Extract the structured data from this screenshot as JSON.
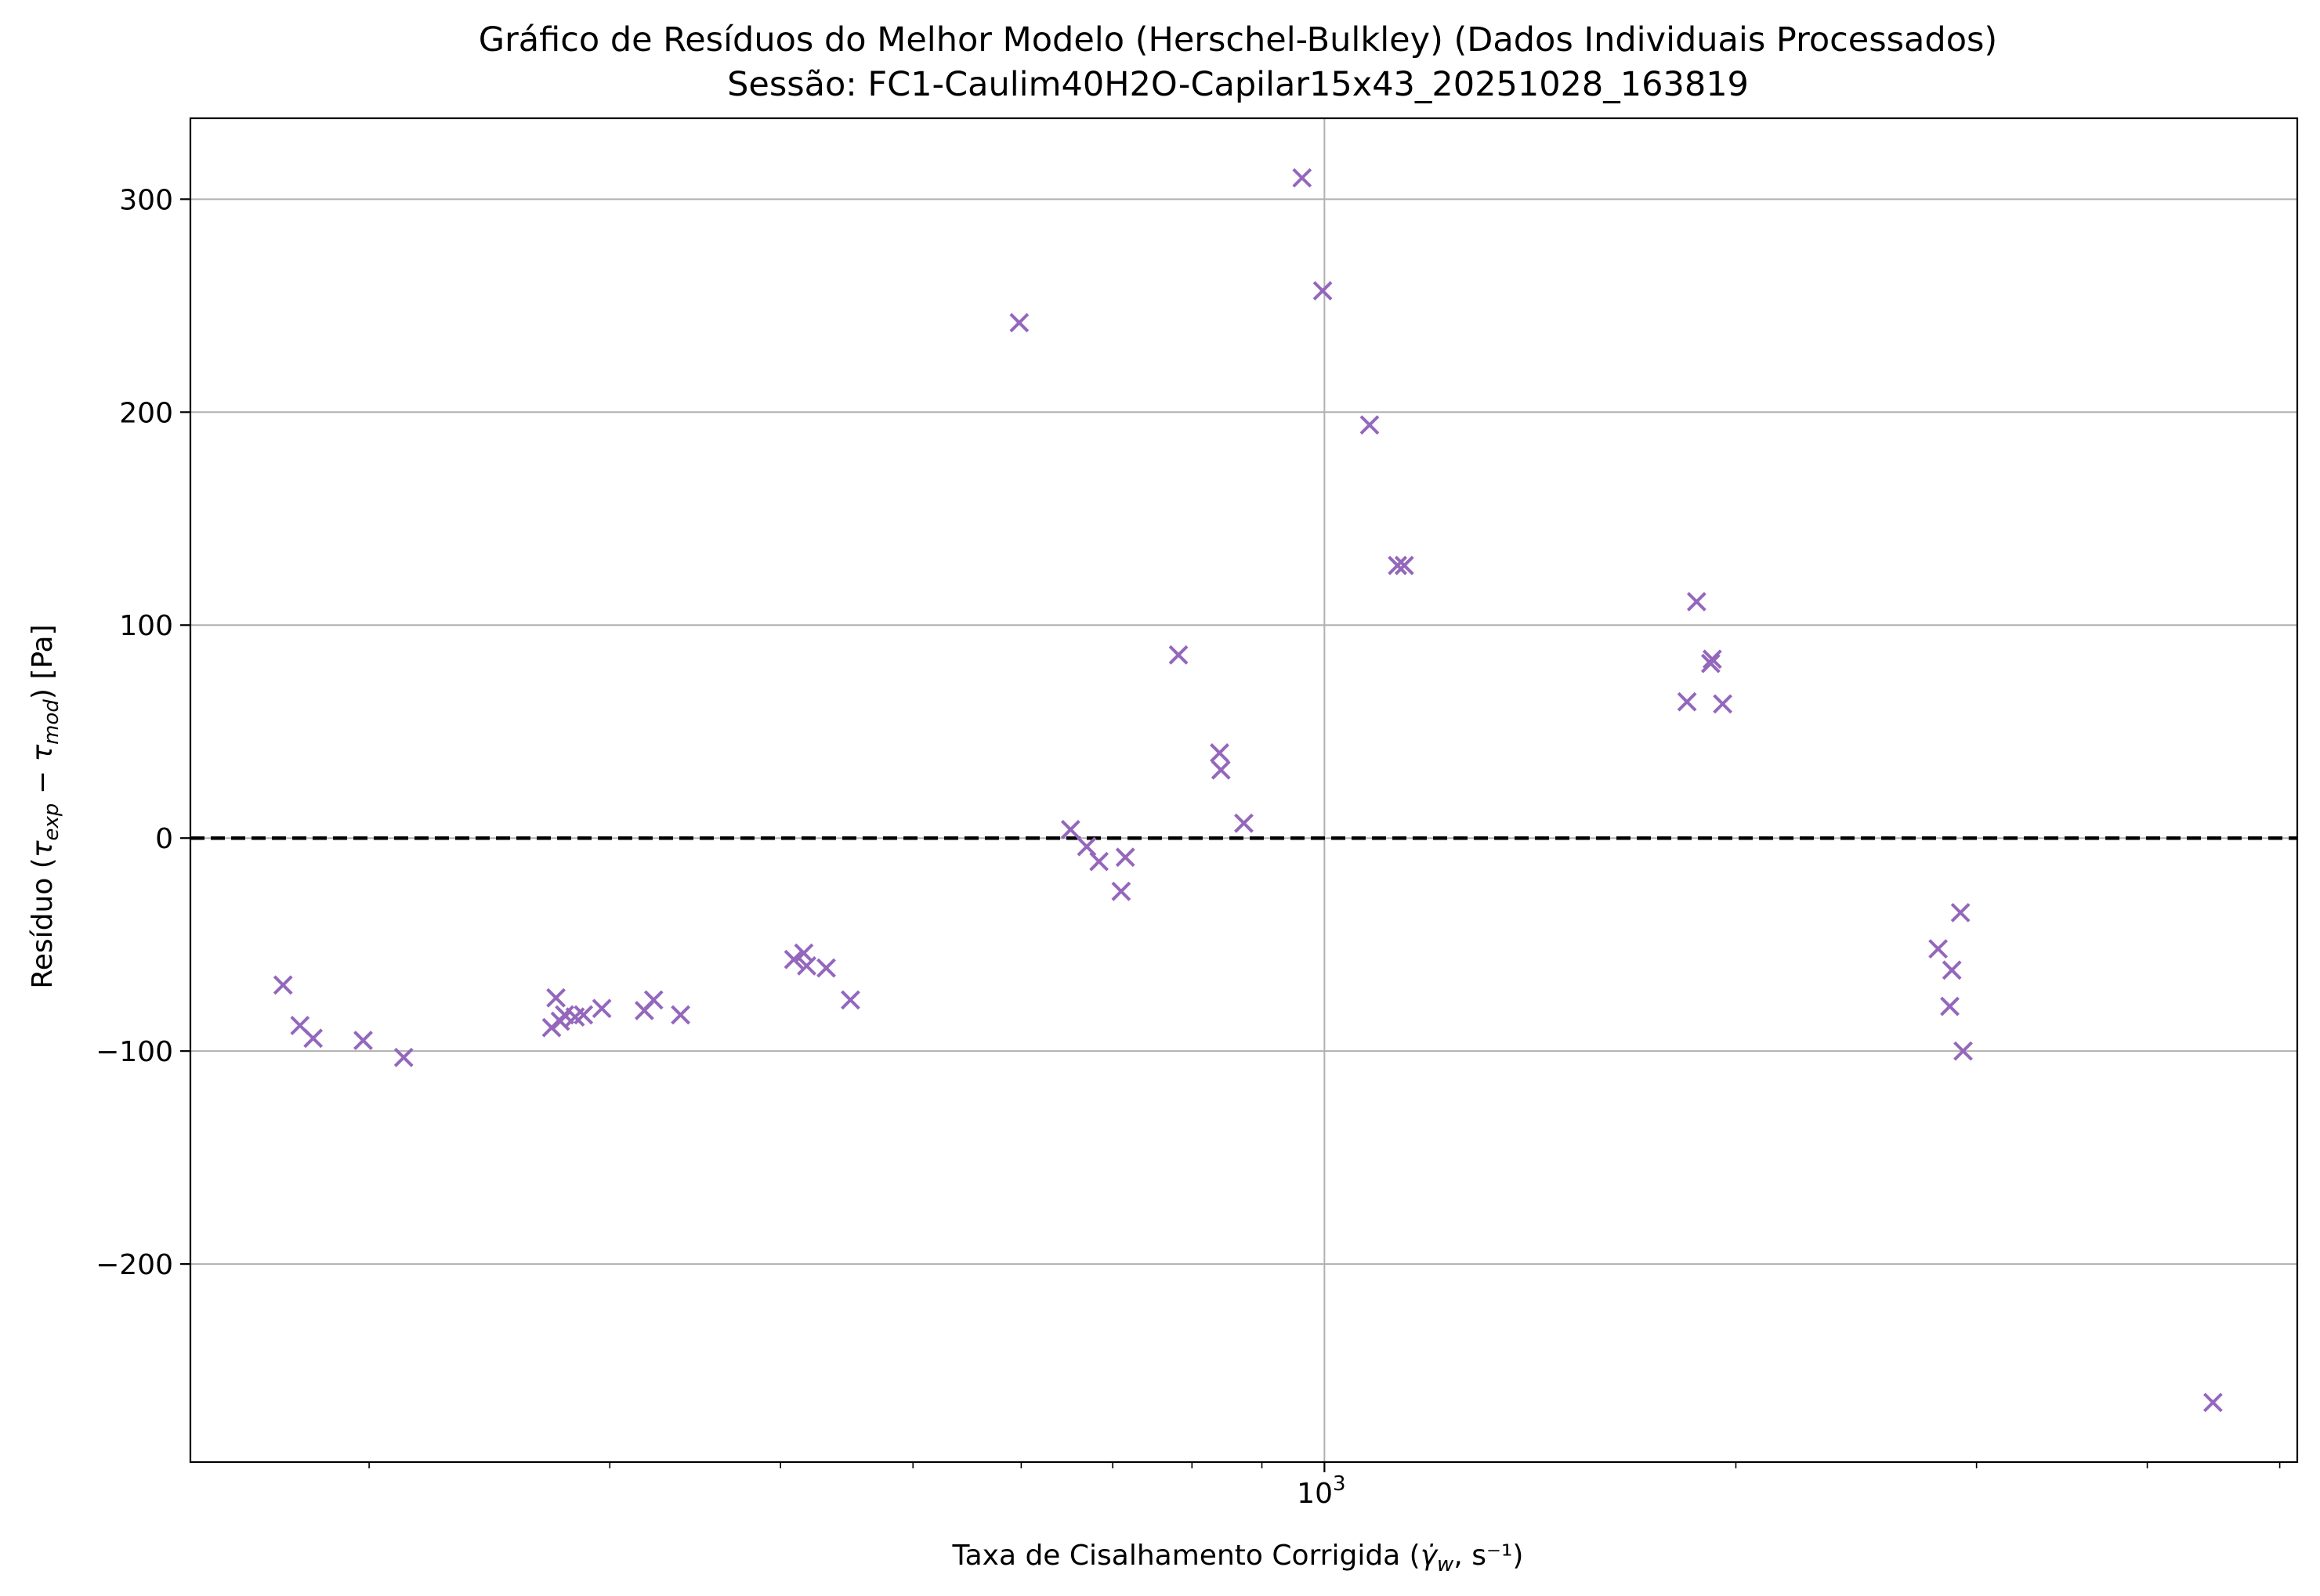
{
  "chart_data": {
    "type": "scatter",
    "title": "Gráfico de Resíduos do Melhor Modelo (Herschel-Bulkley) (Dados Individuais Processados)",
    "subtitle": "Sessão: FC1-Caulim40H2O-Capilar15x43_20251028_163819",
    "xlabel": "Taxa de Cisalhamento Corrigida (γ̇w, s⁻¹)",
    "xlabel_parts": {
      "prefix": "Taxa de Cisalhamento Corrigida (",
      "gamma": "γ̇",
      "sub": "w",
      "suffix": ", s⁻¹)"
    },
    "ylabel": "Resíduo (τexp − τmod) [Pa]",
    "ylabel_parts": {
      "prefix": "Resíduo (",
      "tau1": "τ",
      "sub1": "exp",
      "minus": " − ",
      "tau2": "τ",
      "sub2": "mod",
      "suffix": ") [Pa]"
    },
    "x_scale": "log",
    "xlim": [
      148,
      5150
    ],
    "ylim": [
      -293,
      338
    ],
    "yticks": [
      -200,
      -100,
      0,
      100,
      200,
      300
    ],
    "ytick_labels": [
      "−200",
      "−100",
      "0",
      "100",
      "200",
      "300"
    ],
    "xticks_major": [
      1000
    ],
    "xtick_labels_major": [
      {
        "base": "10",
        "exp": "3"
      }
    ],
    "xticks_minor": [
      200,
      300,
      400,
      500,
      600,
      700,
      800,
      900,
      2000,
      3000,
      4000,
      5000
    ],
    "grid": true,
    "reference_line": {
      "y": 0,
      "style": "dashed",
      "color": "#000000"
    },
    "marker": "x",
    "series": [
      {
        "color": "#9467bd",
        "points": [
          {
            "x": 173,
            "y": -69
          },
          {
            "x": 178,
            "y": -88
          },
          {
            "x": 182,
            "y": -94
          },
          {
            "x": 198,
            "y": -95
          },
          {
            "x": 212,
            "y": -103
          },
          {
            "x": 272,
            "y": -89
          },
          {
            "x": 274,
            "y": -75
          },
          {
            "x": 276,
            "y": -86
          },
          {
            "x": 278,
            "y": -83
          },
          {
            "x": 283,
            "y": -84
          },
          {
            "x": 287,
            "y": -83
          },
          {
            "x": 296,
            "y": -80
          },
          {
            "x": 318,
            "y": -81
          },
          {
            "x": 323,
            "y": -76
          },
          {
            "x": 338,
            "y": -83
          },
          {
            "x": 409,
            "y": -57
          },
          {
            "x": 416,
            "y": -54
          },
          {
            "x": 418,
            "y": -60
          },
          {
            "x": 432,
            "y": -61
          },
          {
            "x": 450,
            "y": -76
          },
          {
            "x": 598,
            "y": 242
          },
          {
            "x": 652,
            "y": 4
          },
          {
            "x": 670,
            "y": -4
          },
          {
            "x": 684,
            "y": -11
          },
          {
            "x": 710,
            "y": -25
          },
          {
            "x": 715,
            "y": -9
          },
          {
            "x": 782,
            "y": 86
          },
          {
            "x": 838,
            "y": 40
          },
          {
            "x": 840,
            "y": 32
          },
          {
            "x": 873,
            "y": 7
          },
          {
            "x": 963,
            "y": 310
          },
          {
            "x": 997,
            "y": 257
          },
          {
            "x": 1079,
            "y": 194
          },
          {
            "x": 1131,
            "y": 128
          },
          {
            "x": 1144,
            "y": 128
          },
          {
            "x": 1842,
            "y": 64
          },
          {
            "x": 1872,
            "y": 111
          },
          {
            "x": 1917,
            "y": 82
          },
          {
            "x": 1922,
            "y": 84
          },
          {
            "x": 1956,
            "y": 63
          },
          {
            "x": 2812,
            "y": -52
          },
          {
            "x": 2868,
            "y": -79
          },
          {
            "x": 2878,
            "y": -62
          },
          {
            "x": 2920,
            "y": -35
          },
          {
            "x": 2933,
            "y": -100
          },
          {
            "x": 4468,
            "y": -265
          }
        ]
      }
    ]
  }
}
